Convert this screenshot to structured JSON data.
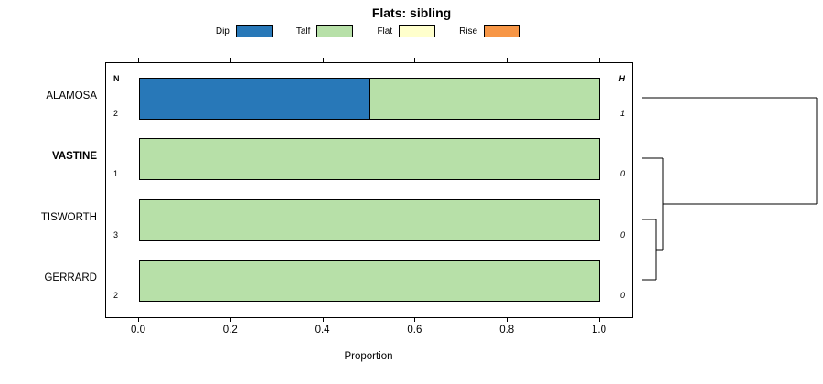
{
  "chart_data": {
    "type": "bar",
    "orientation": "horizontal-stacked",
    "title": "Flats: sibling",
    "xlabel": "Proportion",
    "xlim": [
      0.0,
      1.0
    ],
    "xticks": [
      0.0,
      0.2,
      0.4,
      0.6,
      0.8,
      1.0
    ],
    "grid": false,
    "legend_position": "top",
    "legend": [
      {
        "label": "Dip",
        "color": "#2878b8"
      },
      {
        "label": "Talf",
        "color": "#b7e0a8"
      },
      {
        "label": "Flat",
        "color": "#ffffcc"
      },
      {
        "label": "Rise",
        "color": "#f79646"
      }
    ],
    "left_col_header": "N",
    "right_col_header": "H",
    "rows": [
      {
        "label": "ALAMOSA",
        "bold": false,
        "n": 2,
        "h": 1,
        "segments": [
          {
            "name": "Dip",
            "value": 0.5
          },
          {
            "name": "Talf",
            "value": 0.5
          }
        ]
      },
      {
        "label": "VASTINE",
        "bold": true,
        "n": 1,
        "h": 0,
        "segments": [
          {
            "name": "Talf",
            "value": 1.0
          }
        ]
      },
      {
        "label": "TISWORTH",
        "bold": false,
        "n": 3,
        "h": 0,
        "segments": [
          {
            "name": "Talf",
            "value": 1.0
          }
        ]
      },
      {
        "label": "GERRARD",
        "bold": false,
        "n": 2,
        "h": 0,
        "segments": [
          {
            "name": "Talf",
            "value": 1.0
          }
        ]
      }
    ],
    "dendrogram": {
      "order": [
        "ALAMOSA",
        "VASTINE",
        "TISWORTH",
        "GERRARD"
      ],
      "merges": [
        {
          "a": "TISWORTH",
          "b": "GERRARD",
          "height": 0.078
        },
        {
          "a": "VASTINE",
          "b": "merge0",
          "height": 0.12
        },
        {
          "a": "ALAMOSA",
          "b": "merge1",
          "height": 1.0
        }
      ]
    }
  }
}
